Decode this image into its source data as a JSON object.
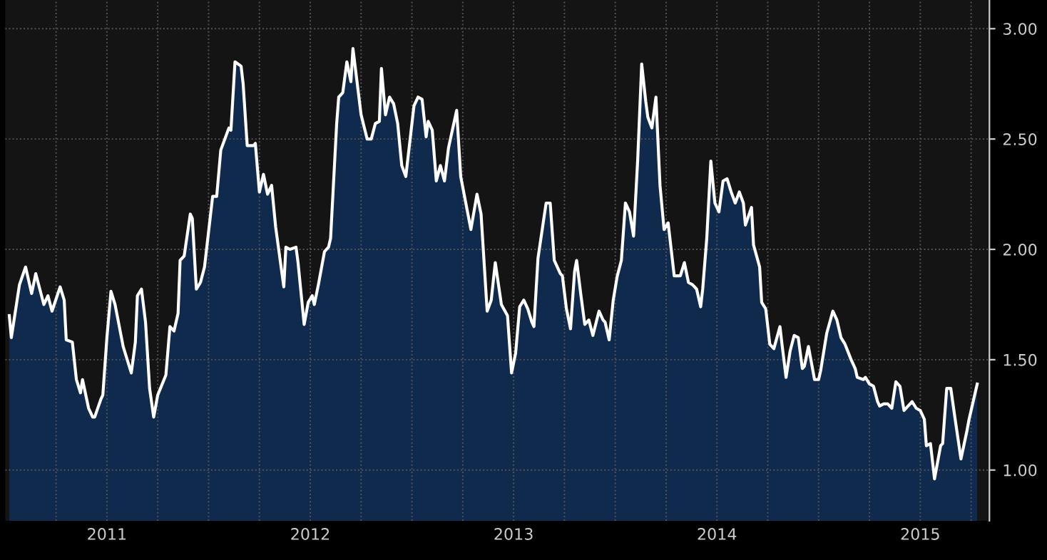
{
  "chart_data": {
    "type": "area",
    "x": [
      2011.02,
      2011.03,
      2011.07,
      2011.1,
      2011.13,
      2011.15,
      2011.19,
      2011.21,
      2011.23,
      2011.27,
      2011.29,
      2011.3,
      2011.33,
      2011.35,
      2011.37,
      2011.38,
      2011.41,
      2011.43,
      2011.44,
      2011.47,
      2011.48,
      2011.5,
      2011.52,
      2011.54,
      2011.58,
      2011.62,
      2011.64,
      2011.65,
      2011.67,
      2011.69,
      2011.71,
      2011.73,
      2011.75,
      2011.79,
      2011.81,
      2011.83,
      2011.85,
      2011.86,
      2011.88,
      2011.91,
      2011.92,
      2011.94,
      2011.96,
      2011.98,
      2012.02,
      2012.04,
      2012.06,
      2012.1,
      2012.11,
      2012.13,
      2012.16,
      2012.17,
      2012.19,
      2012.22,
      2012.23,
      2012.25,
      2012.27,
      2012.29,
      2012.31,
      2012.33,
      2012.37,
      2012.38,
      2012.4,
      2012.43,
      2012.44,
      2012.47,
      2012.49,
      2012.51,
      2012.52,
      2012.54,
      2012.57,
      2012.59,
      2012.6,
      2012.63,
      2012.64,
      2012.66,
      2012.68,
      2012.7,
      2012.71,
      2012.75,
      2012.78,
      2012.8,
      2012.82,
      2012.84,
      2012.85,
      2012.87,
      2012.89,
      2012.91,
      2012.93,
      2012.95,
      2012.97,
      2013.01,
      2013.03,
      2013.05,
      2013.07,
      2013.08,
      2013.1,
      2013.12,
      2013.14,
      2013.16,
      2013.18,
      2013.22,
      2013.24,
      2013.29,
      2013.32,
      2013.34,
      2013.37,
      2013.39,
      2013.41,
      2013.44,
      2013.47,
      2013.49,
      2013.51,
      2013.53,
      2013.55,
      2013.57,
      2013.59,
      2013.6,
      2013.62,
      2013.66,
      2013.68,
      2013.7,
      2013.73,
      2013.74,
      2013.76,
      2013.78,
      2013.8,
      2013.81,
      2013.83,
      2013.85,
      2013.87,
      2013.89,
      2013.92,
      2013.94,
      2013.95,
      2013.97,
      2013.99,
      2014.01,
      2014.03,
      2014.05,
      2014.07,
      2014.09,
      2014.11,
      2014.13,
      2014.15,
      2014.16,
      2014.18,
      2014.2,
      2014.22,
      2014.24,
      2014.26,
      2014.29,
      2014.32,
      2014.34,
      2014.36,
      2014.38,
      2014.4,
      2014.42,
      2014.43,
      2014.45,
      2014.47,
      2014.49,
      2014.51,
      2014.53,
      2014.55,
      2014.57,
      2014.59,
      2014.61,
      2014.63,
      2014.64,
      2014.67,
      2014.68,
      2014.71,
      2014.72,
      2014.74,
      2014.76,
      2014.78,
      2014.81,
      2014.82,
      2014.84,
      2014.86,
      2014.88,
      2014.9,
      2014.92,
      2014.93,
      2014.95,
      2014.98,
      2015.0,
      2015.01,
      2015.04,
      2015.07,
      2015.09,
      2015.11,
      2015.13,
      2015.16,
      2015.18,
      2015.19,
      2015.22,
      2015.23,
      2015.25,
      2015.27,
      2015.29,
      2015.3,
      2015.32,
      2015.34,
      2015.36,
      2015.38,
      2015.4,
      2015.42,
      2015.44,
      2015.46,
      2015.48,
      2015.5,
      2015.52,
      2015.53,
      2015.55,
      2015.57,
      2015.6,
      2015.61,
      2015.63,
      2015.65,
      2015.67,
      2015.7,
      2015.73,
      2015.74,
      2015.78
    ],
    "series": [
      {
        "color": "#ffffff",
        "values": [
          1.7,
          1.6,
          1.84,
          1.92,
          1.8,
          1.89,
          1.75,
          1.79,
          1.72,
          1.83,
          1.77,
          1.59,
          1.58,
          1.41,
          1.35,
          1.41,
          1.28,
          1.24,
          1.24,
          1.32,
          1.34,
          1.6,
          1.81,
          1.75,
          1.56,
          1.44,
          1.58,
          1.79,
          1.82,
          1.67,
          1.37,
          1.24,
          1.34,
          1.43,
          1.65,
          1.63,
          1.71,
          1.95,
          1.97,
          2.16,
          2.14,
          1.82,
          1.85,
          1.92,
          2.24,
          2.24,
          2.45,
          2.55,
          2.54,
          2.85,
          2.83,
          2.75,
          2.47,
          2.47,
          2.48,
          2.26,
          2.34,
          2.25,
          2.29,
          2.1,
          1.83,
          2.01,
          2.0,
          2.01,
          1.94,
          1.66,
          1.76,
          1.79,
          1.75,
          1.84,
          1.99,
          2.01,
          2.05,
          2.57,
          2.69,
          2.71,
          2.85,
          2.76,
          2.91,
          2.61,
          2.5,
          2.5,
          2.57,
          2.58,
          2.82,
          2.61,
          2.69,
          2.66,
          2.57,
          2.38,
          2.33,
          2.65,
          2.69,
          2.68,
          2.51,
          2.58,
          2.54,
          2.31,
          2.38,
          2.31,
          2.46,
          2.63,
          2.33,
          2.09,
          2.25,
          2.16,
          1.72,
          1.77,
          1.94,
          1.75,
          1.7,
          1.44,
          1.53,
          1.74,
          1.77,
          1.73,
          1.67,
          1.65,
          1.96,
          2.21,
          2.21,
          1.95,
          1.89,
          1.88,
          1.73,
          1.64,
          1.9,
          1.95,
          1.8,
          1.66,
          1.68,
          1.61,
          1.72,
          1.68,
          1.67,
          1.59,
          1.77,
          1.88,
          1.95,
          2.21,
          2.17,
          2.06,
          2.4,
          2.84,
          2.67,
          2.6,
          2.55,
          2.69,
          2.29,
          2.09,
          2.12,
          1.88,
          1.88,
          1.94,
          1.85,
          1.84,
          1.82,
          1.74,
          1.82,
          2.05,
          2.4,
          2.21,
          2.17,
          2.31,
          2.32,
          2.26,
          2.21,
          2.26,
          2.21,
          2.11,
          2.19,
          2.02,
          1.92,
          1.76,
          1.73,
          1.57,
          1.55,
          1.65,
          1.57,
          1.42,
          1.54,
          1.61,
          1.6,
          1.46,
          1.47,
          1.56,
          1.41,
          1.41,
          1.45,
          1.62,
          1.72,
          1.68,
          1.6,
          1.57,
          1.5,
          1.46,
          1.42,
          1.41,
          1.42,
          1.39,
          1.38,
          1.31,
          1.29,
          1.3,
          1.3,
          1.28,
          1.4,
          1.38,
          1.27,
          1.29,
          1.31,
          1.28,
          1.27,
          1.23,
          1.11,
          1.12,
          0.96,
          1.11,
          1.12,
          1.37,
          1.37,
          1.24,
          1.05,
          1.18,
          1.23,
          1.39
        ]
      }
    ],
    "xlim": [
      2011.0,
      2015.84
    ],
    "xticks": [
      {
        "value": 2011.25,
        "label": null
      },
      {
        "value": 2011.5,
        "label": "2011"
      },
      {
        "value": 2011.75,
        "label": null
      },
      {
        "value": 2012.0,
        "label": null
      },
      {
        "value": 2012.25,
        "label": null
      },
      {
        "value": 2012.5,
        "label": "2012"
      },
      {
        "value": 2012.75,
        "label": null
      },
      {
        "value": 2013.0,
        "label": null
      },
      {
        "value": 2013.25,
        "label": null
      },
      {
        "value": 2013.5,
        "label": "2013"
      },
      {
        "value": 2013.75,
        "label": null
      },
      {
        "value": 2014.0,
        "label": null
      },
      {
        "value": 2014.25,
        "label": null
      },
      {
        "value": 2014.5,
        "label": "2014"
      },
      {
        "value": 2014.75,
        "label": null
      },
      {
        "value": 2015.0,
        "label": null
      },
      {
        "value": 2015.25,
        "label": null
      },
      {
        "value": 2015.5,
        "label": "2015"
      },
      {
        "value": 2015.75,
        "label": null
      }
    ],
    "ylim": [
      0.77,
      3.13
    ],
    "yticks": [
      {
        "value": 1.0,
        "label": "1.00"
      },
      {
        "value": 1.5,
        "label": "1.50"
      },
      {
        "value": 2.0,
        "label": "2.00"
      },
      {
        "value": 2.5,
        "label": "2.50"
      },
      {
        "value": 3.0,
        "label": "3.00"
      }
    ],
    "grid": true
  }
}
